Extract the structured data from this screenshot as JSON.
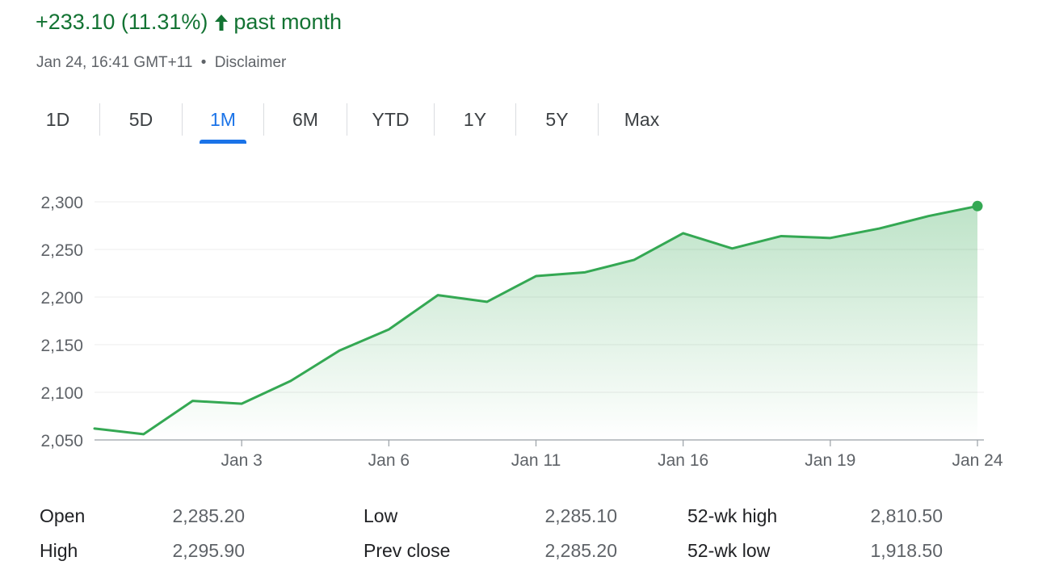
{
  "header": {
    "change_text": "+233.10 (11.31%)",
    "period_text": "past month",
    "arrow_icon": "arrow-up-icon",
    "timestamp": "Jan 24, 16:41 GMT+11",
    "separator": "•",
    "disclaimer": "Disclaimer",
    "accent_color": "#137333"
  },
  "tabs": [
    {
      "label": "1D",
      "active": false
    },
    {
      "label": "5D",
      "active": false
    },
    {
      "label": "1M",
      "active": true
    },
    {
      "label": "6M",
      "active": false
    },
    {
      "label": "YTD",
      "active": false
    },
    {
      "label": "1Y",
      "active": false
    },
    {
      "label": "5Y",
      "active": false
    },
    {
      "label": "Max",
      "active": false
    }
  ],
  "chart_data": {
    "type": "area",
    "line_color": "#34a853",
    "grid": true,
    "ylim": [
      2050,
      2300
    ],
    "y_ticks": [
      "2,300",
      "2,250",
      "2,200",
      "2,150",
      "2,100",
      "2,050"
    ],
    "y_tick_values": [
      2300,
      2250,
      2200,
      2150,
      2100,
      2050
    ],
    "x_ticks": [
      {
        "label": "Jan 3",
        "index": 3
      },
      {
        "label": "Jan 6",
        "index": 6
      },
      {
        "label": "Jan 11",
        "index": 9
      },
      {
        "label": "Jan 16",
        "index": 12
      },
      {
        "label": "Jan 19",
        "index": 15
      },
      {
        "label": "Jan 24",
        "index": 18
      }
    ],
    "values": [
      2062,
      2056,
      2091,
      2088,
      2112,
      2144,
      2166,
      2202,
      2195,
      2222,
      2226,
      2239,
      2267,
      2251,
      2264,
      2262,
      2272,
      2285,
      2295.5
    ]
  },
  "stats": [
    {
      "label": "Open",
      "value": "2,285.20"
    },
    {
      "label": "High",
      "value": "2,295.90"
    },
    {
      "label": "Low",
      "value": "2,285.10"
    },
    {
      "label": "Prev close",
      "value": "2,285.20"
    },
    {
      "label": "52-wk high",
      "value": "2,810.50"
    },
    {
      "label": "52-wk low",
      "value": "1,918.50"
    }
  ]
}
